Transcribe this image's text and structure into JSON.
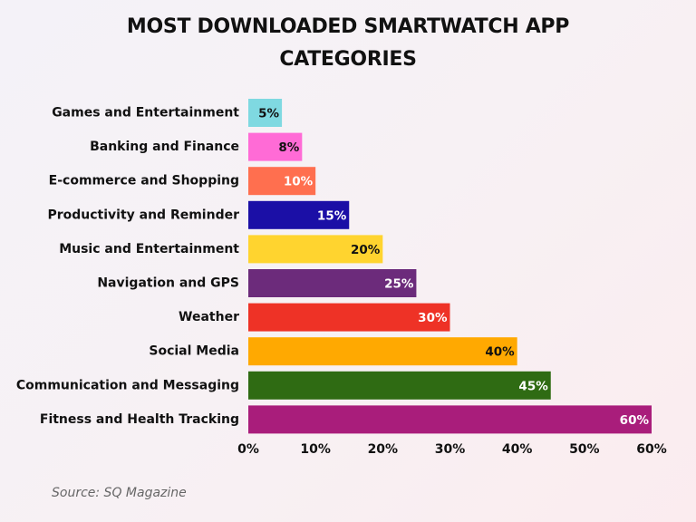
{
  "chart_data": {
    "type": "barh",
    "title": "MOST DOWNLOADED SMARTWATCH APP CATEGORIES",
    "categories": [
      "Games and Entertainment",
      "Banking and Finance",
      "E-commerce and Shopping",
      "Productivity and Reminder",
      "Music and Entertainment",
      "Navigation and GPS",
      "Weather",
      "Social Media",
      "Communication and Messaging",
      "Fitness and Health Tracking"
    ],
    "values": [
      5,
      8,
      10,
      15,
      20,
      25,
      30,
      40,
      45,
      60
    ],
    "value_labels": [
      "5%",
      "8%",
      "10%",
      "15%",
      "20%",
      "25%",
      "30%",
      "40%",
      "45%",
      "60%"
    ],
    "colors": [
      "#7fd9e1",
      "#ff6bd6",
      "#ff6f4f",
      "#1b0fa6",
      "#ffd42f",
      "#6c2b7b",
      "#ee3226",
      "#ffa901",
      "#2f6b13",
      "#a91d7b"
    ],
    "xlim": [
      0,
      60
    ],
    "xticks": [
      {
        "value": 0,
        "label": "0%"
      },
      {
        "value": 10,
        "label": "10%"
      },
      {
        "value": 20,
        "label": "20%"
      },
      {
        "value": 30,
        "label": "30%"
      },
      {
        "value": 40,
        "label": "40%"
      },
      {
        "value": 50,
        "label": "50%"
      },
      {
        "value": 60,
        "label": "60%"
      }
    ],
    "source": "Source: SQ Magazine"
  }
}
